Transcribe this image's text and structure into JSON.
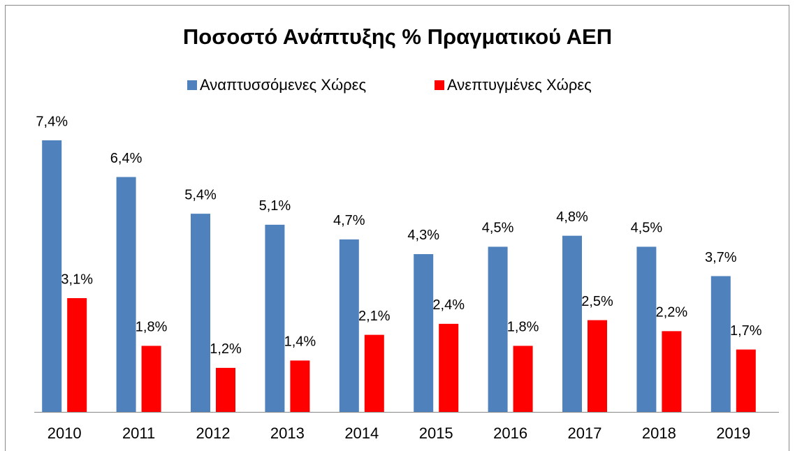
{
  "chart_data": {
    "type": "bar",
    "title": "Ποσοστό Ανάπτυξης % Πραγματικού ΑΕΠ",
    "categories": [
      "2010",
      "2011",
      "2012",
      "2013",
      "2014",
      "2015",
      "2016",
      "2017",
      "2018",
      "2019"
    ],
    "series": [
      {
        "name": "Αναπτυσσόμενες Χώρες",
        "color": "#4f81bd",
        "values": [
          7.4,
          6.4,
          5.4,
          5.1,
          4.7,
          4.3,
          4.5,
          4.8,
          4.5,
          3.7
        ],
        "value_labels": [
          "7,4%",
          "6,4%",
          "5,4%",
          "5,1%",
          "4,7%",
          "4,3%",
          "4,5%",
          "4,8%",
          "4,5%",
          "3,7%"
        ]
      },
      {
        "name": "Ανεπτυγμένες Χώρες",
        "color": "#ff0000",
        "values": [
          3.1,
          1.8,
          1.2,
          1.4,
          2.1,
          2.4,
          1.8,
          2.5,
          2.2,
          1.7
        ],
        "value_labels": [
          "3,1%",
          "1,8%",
          "1,2%",
          "1,4%",
          "2,1%",
          "2,4%",
          "1,8%",
          "2,5%",
          "2,2%",
          "1,7%"
        ]
      }
    ],
    "legend": "top"
  }
}
